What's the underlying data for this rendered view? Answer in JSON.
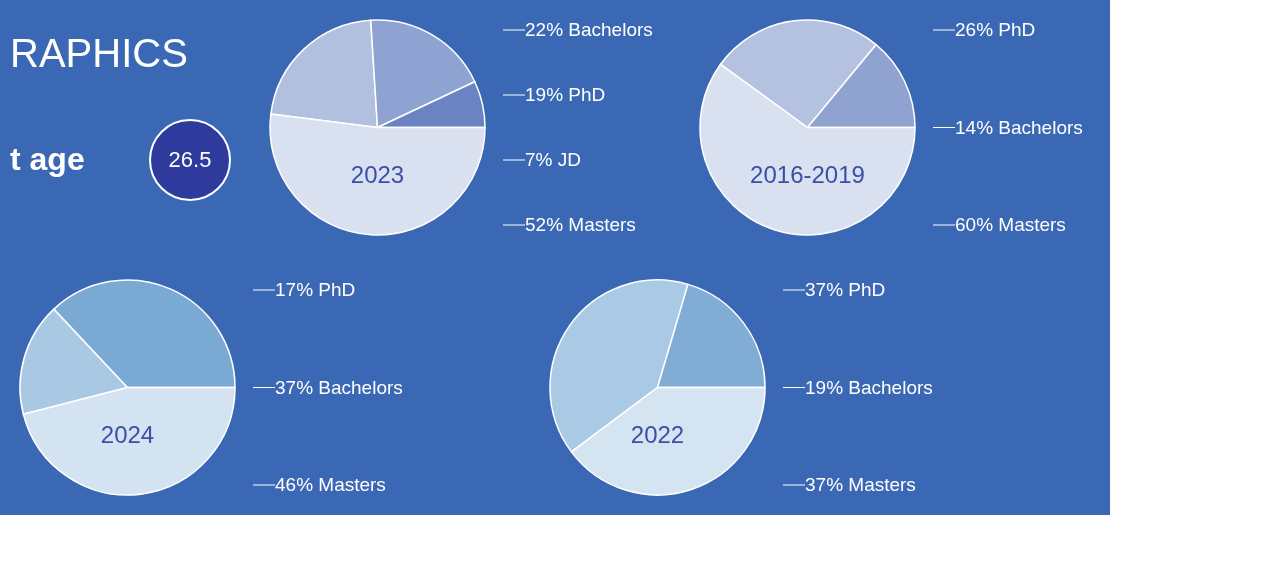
{
  "chart_data": [
    {
      "type": "other",
      "annotations": [
        "RAPHICS",
        "t age",
        "26.5"
      ]
    },
    {
      "type": "pie",
      "title": "2023",
      "legend": "right",
      "categories": [
        "Bachelors",
        "PhD",
        "JD",
        "Masters"
      ],
      "values": [
        22,
        19,
        7,
        52
      ],
      "value_labels": [
        "22%",
        "19%",
        "7%",
        "52%"
      ],
      "colors": [
        "#b2c0e0",
        "#8ea3d2",
        "#6a84c3",
        "#d9e1f0"
      ]
    },
    {
      "type": "pie",
      "title": "2016-2019",
      "legend": "right",
      "categories": [
        "PhD",
        "Bachelors",
        "Masters"
      ],
      "values": [
        26,
        14,
        60
      ],
      "value_labels": [
        "26%",
        "14%",
        "60%"
      ],
      "colors": [
        "#b4c1e0",
        "#8fa2d0",
        "#d9e1f0"
      ]
    },
    {
      "type": "pie",
      "title": "2024",
      "legend": "right",
      "categories": [
        "PhD",
        "Bachelors",
        "Masters"
      ],
      "values": [
        17,
        37,
        46
      ],
      "value_labels": [
        "17%",
        "37%",
        "46%"
      ],
      "colors": [
        "#a9c8e4",
        "#7aa9d4",
        "#d3e3f1"
      ]
    },
    {
      "type": "pie",
      "title": "2022",
      "legend": "right",
      "categories": [
        "PhD",
        "Bachelors",
        "Masters"
      ],
      "values": [
        37,
        19,
        37
      ],
      "value_labels": [
        "37%",
        "19%",
        "37%"
      ],
      "colors": [
        "#a9c9e5",
        "#80acd6",
        "#d5e4f1"
      ]
    }
  ]
}
